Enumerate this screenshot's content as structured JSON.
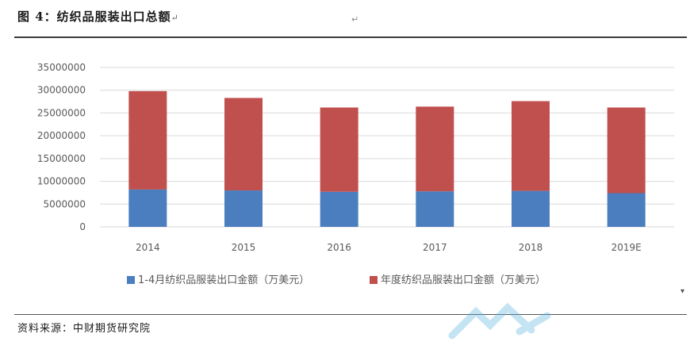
{
  "figure": {
    "title": "图 4：纺织品服装出口总额",
    "title_return_mark": "↵",
    "source": "资料来源：中财期货研究院",
    "edge_mark": "▾"
  },
  "colors": {
    "series_1": "#4a7ebf",
    "series_2": "#c0504d",
    "grid": "#d9d9d9",
    "axis_text": "#595959"
  },
  "chart_data": {
    "type": "bar",
    "stacked": true,
    "categories": [
      "2014",
      "2015",
      "2016",
      "2017",
      "2018",
      "2019E"
    ],
    "series": [
      {
        "name": "1-4月纺织品服装出口金额（万美元）",
        "values": [
          8200000,
          8000000,
          7700000,
          7800000,
          7900000,
          7400000
        ]
      },
      {
        "name": "年度纺织品服装出口金额（万美元）",
        "values": [
          21600000,
          20300000,
          18500000,
          18600000,
          19700000,
          18800000
        ]
      }
    ],
    "y_ticks": [
      "0",
      "5000000",
      "10000000",
      "15000000",
      "20000000",
      "25000000",
      "30000000",
      "35000000"
    ],
    "ylim": [
      0,
      35000000
    ],
    "grid": true,
    "legend_position": "bottom"
  }
}
